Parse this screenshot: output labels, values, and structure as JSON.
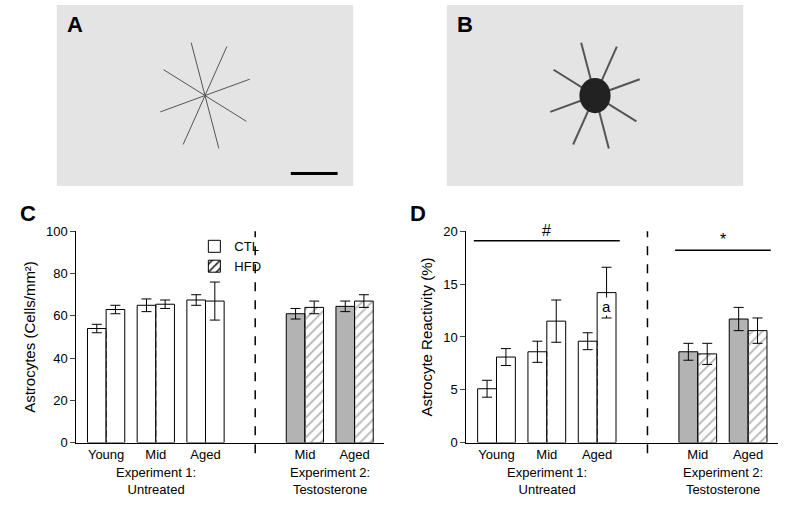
{
  "panels": [
    {
      "label": "A"
    },
    {
      "label": "B"
    }
  ],
  "chart_data": [
    {
      "panel": "C",
      "type": "bar",
      "y_label": "Astrocytes (Cells/mm²)",
      "categories": [
        "Young",
        "Mid",
        "Aged",
        null,
        "Mid",
        "Aged"
      ],
      "groups": [
        {
          "label": "Experiment 1:\nUntreated",
          "from": 0,
          "to": 2
        },
        {
          "label": "Experiment 2:\nTestosterone",
          "from": 4,
          "to": 5
        }
      ],
      "series": [
        {
          "name": "CTL",
          "marker": "solid",
          "colors": [
            "#ffffff",
            "#ffffff",
            "#ffffff",
            null,
            "#b3b3b3",
            "#b3b3b3"
          ],
          "values": [
            54,
            65,
            67.5,
            null,
            61,
            64.5
          ],
          "errors": [
            2,
            3,
            2.5,
            null,
            2.5,
            2.5
          ]
        },
        {
          "name": "HFD",
          "marker": "hatched",
          "colors": [
            "#ffffff",
            "#ffffff",
            "#ffffff",
            null,
            "#b3b3b3",
            "#b3b3b3"
          ],
          "values": [
            63,
            65.5,
            67,
            null,
            64,
            67
          ],
          "errors": [
            2,
            2,
            9,
            null,
            3,
            3
          ]
        }
      ],
      "ylim": [
        0,
        100
      ],
      "yticks": [
        0,
        20,
        40,
        60,
        80,
        100
      ],
      "legend": "top"
    },
    {
      "panel": "D",
      "type": "bar",
      "y_label": "Astrocyte Reactivity (%)",
      "categories": [
        "Young",
        "Mid",
        "Aged",
        null,
        "Mid",
        "Aged"
      ],
      "groups": [
        {
          "label": "Experiment 1:\nUntreated",
          "from": 0,
          "to": 2
        },
        {
          "label": "Experiment 2:\nTestosterone",
          "from": 4,
          "to": 5
        }
      ],
      "series": [
        {
          "name": "CTL",
          "marker": "solid",
          "colors": [
            "#ffffff",
            "#ffffff",
            "#ffffff",
            null,
            "#b3b3b3",
            "#b3b3b3"
          ],
          "values": [
            5.1,
            8.6,
            9.6,
            null,
            8.6,
            11.7
          ],
          "errors": [
            0.8,
            1.0,
            0.8,
            null,
            0.8,
            1.1
          ]
        },
        {
          "name": "HFD",
          "marker": "hatched",
          "colors": [
            "#ffffff",
            "#ffffff",
            "#ffffff",
            null,
            "#b3b3b3",
            "#b3b3b3"
          ],
          "values": [
            8.1,
            11.5,
            14.2,
            null,
            8.4,
            10.6
          ],
          "errors": [
            0.8,
            2.0,
            2.4,
            null,
            1.0,
            1.2
          ]
        }
      ],
      "ylim": [
        0,
        20
      ],
      "yticks": [
        0,
        5,
        10,
        15,
        20
      ],
      "significance": [
        {
          "text": "#",
          "from": 0,
          "to": 2,
          "y": 19.1
        },
        {
          "text": "*",
          "from": 4,
          "to": 5,
          "y": 18.2
        }
      ],
      "annotations": [
        {
          "text": "a",
          "category": 2,
          "series": "HFD",
          "y": 12.9
        }
      ]
    }
  ]
}
